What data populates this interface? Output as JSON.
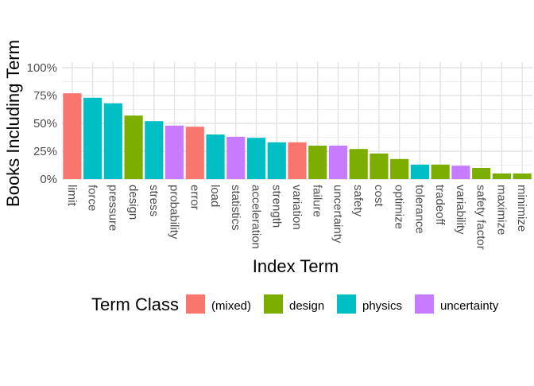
{
  "chart_data": {
    "type": "bar",
    "title": "",
    "xlabel": "Index Term",
    "ylabel": "Books Including Term",
    "ylim": [
      0,
      1.05
    ],
    "y_ticks": [
      0,
      0.25,
      0.5,
      0.75,
      1.0
    ],
    "y_tick_labels": [
      "0%",
      "25%",
      "50%",
      "75%",
      "100%"
    ],
    "grid": true,
    "legend_position": "bottom",
    "legend_title": "Term Class",
    "classes": [
      {
        "name": "(mixed)",
        "color": "#F8766D"
      },
      {
        "name": "design",
        "color": "#7CAE00"
      },
      {
        "name": "physics",
        "color": "#00BFC4"
      },
      {
        "name": "uncertainty",
        "color": "#C77CFF"
      }
    ],
    "categories": [
      "limit",
      "force",
      "pressure",
      "design",
      "stress",
      "probability",
      "error",
      "load",
      "statistics",
      "acceleration",
      "strength",
      "variation",
      "failure",
      "uncertainty",
      "safety",
      "cost",
      "optimize",
      "tolerance",
      "tradeoff",
      "variability",
      "safety factor",
      "maximize",
      "minimize"
    ],
    "values": [
      0.77,
      0.73,
      0.68,
      0.57,
      0.52,
      0.48,
      0.47,
      0.4,
      0.38,
      0.37,
      0.33,
      0.33,
      0.3,
      0.3,
      0.27,
      0.23,
      0.18,
      0.13,
      0.13,
      0.12,
      0.1,
      0.05,
      0.05
    ],
    "term_class": [
      "(mixed)",
      "physics",
      "physics",
      "design",
      "physics",
      "uncertainty",
      "(mixed)",
      "physics",
      "uncertainty",
      "physics",
      "physics",
      "(mixed)",
      "design",
      "uncertainty",
      "design",
      "design",
      "design",
      "physics",
      "design",
      "uncertainty",
      "design",
      "design",
      "design"
    ]
  }
}
